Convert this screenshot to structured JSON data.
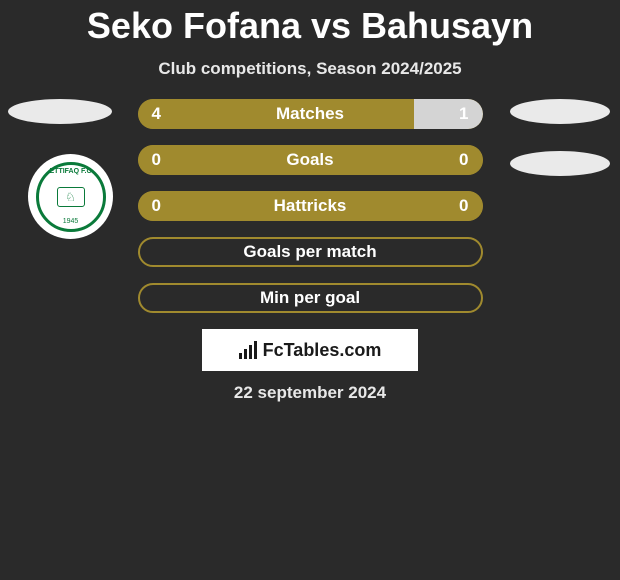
{
  "title": "Seko Fofana vs Bahusayn",
  "subtitle": "Club competitions, Season 2024/2025",
  "badge": {
    "top_text": "ETTIFAQ F.C",
    "year": "1945"
  },
  "bars": [
    {
      "label": "Matches",
      "left_val": "4",
      "right_val": "1",
      "left_pct": 80,
      "right_pct": 20,
      "type": "split",
      "bg_left": "#a08a2e",
      "bg_right": "#d4d4d4"
    },
    {
      "label": "Goals",
      "left_val": "0",
      "right_val": "0",
      "left_pct": 50,
      "right_pct": 50,
      "type": "split",
      "bg_left": "#a08a2e",
      "bg_right": "#a08a2e"
    },
    {
      "label": "Hattricks",
      "left_val": "0",
      "right_val": "0",
      "left_pct": 50,
      "right_pct": 50,
      "type": "split",
      "bg_left": "#a08a2e",
      "bg_right": "#a08a2e"
    },
    {
      "label": "Goals per match",
      "left_val": "",
      "right_val": "",
      "type": "empty"
    },
    {
      "label": "Min per goal",
      "left_val": "",
      "right_val": "",
      "type": "empty"
    }
  ],
  "logo_text": "FcTables.com",
  "date": "22 september 2024",
  "colors": {
    "background": "#2a2a2a",
    "bar_primary": "#a08a2e",
    "bar_secondary": "#d4d4d4",
    "text": "#ffffff",
    "ellipse": "#eaeaea",
    "badge_green": "#0a7a3a"
  }
}
